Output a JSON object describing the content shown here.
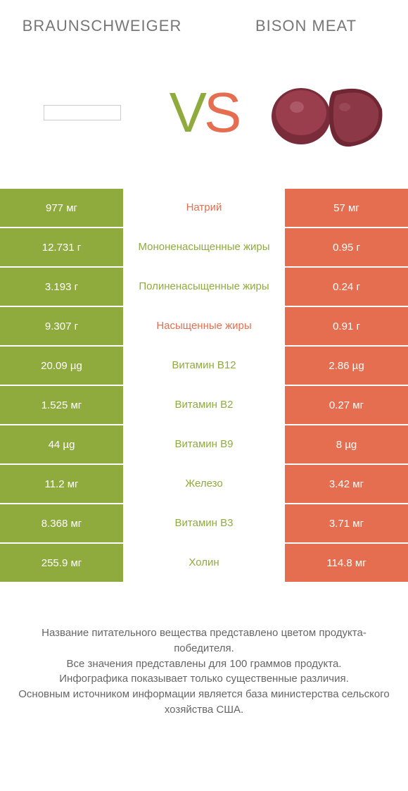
{
  "header": {
    "left_title": "BRAUNSCHWEIGER",
    "right_title": "BISON MEAT",
    "vs_v": "V",
    "vs_s": "S"
  },
  "colors": {
    "left": "#8fab3e",
    "right": "#e46e4f",
    "meat_dark": "#7a2c3a",
    "meat_light": "#9a3d4d",
    "background": "#ffffff",
    "text": "#666666"
  },
  "rows": [
    {
      "left": "977 мг",
      "mid": "Натрий",
      "winner": "right",
      "right": "57 мг"
    },
    {
      "left": "12.731 г",
      "mid": "Мононенасыщенные жиры",
      "winner": "left",
      "right": "0.95 г"
    },
    {
      "left": "3.193 г",
      "mid": "Полиненасыщенные жиры",
      "winner": "left",
      "right": "0.24 г"
    },
    {
      "left": "9.307 г",
      "mid": "Насыщенные жиры",
      "winner": "right",
      "right": "0.91 г"
    },
    {
      "left": "20.09 µg",
      "mid": "Витамин B12",
      "winner": "left",
      "right": "2.86 µg"
    },
    {
      "left": "1.525 мг",
      "mid": "Витамин B2",
      "winner": "left",
      "right": "0.27 мг"
    },
    {
      "left": "44 µg",
      "mid": "Витамин B9",
      "winner": "left",
      "right": "8 µg"
    },
    {
      "left": "11.2 мг",
      "mid": "Железо",
      "winner": "left",
      "right": "3.42 мг"
    },
    {
      "left": "8.368 мг",
      "mid": "Витамин B3",
      "winner": "left",
      "right": "3.71 мг"
    },
    {
      "left": "255.9 мг",
      "mid": "Холин",
      "winner": "left",
      "right": "114.8 мг"
    }
  ],
  "footer": {
    "line1": "Название питательного вещества представлено цветом продукта-победителя.",
    "line2": "Все значения представлены для 100 граммов продукта.",
    "line3": "Инфографика показывает только существенные различия.",
    "line4": "Основным источником информации является база министерства сельского хозяйства США."
  }
}
